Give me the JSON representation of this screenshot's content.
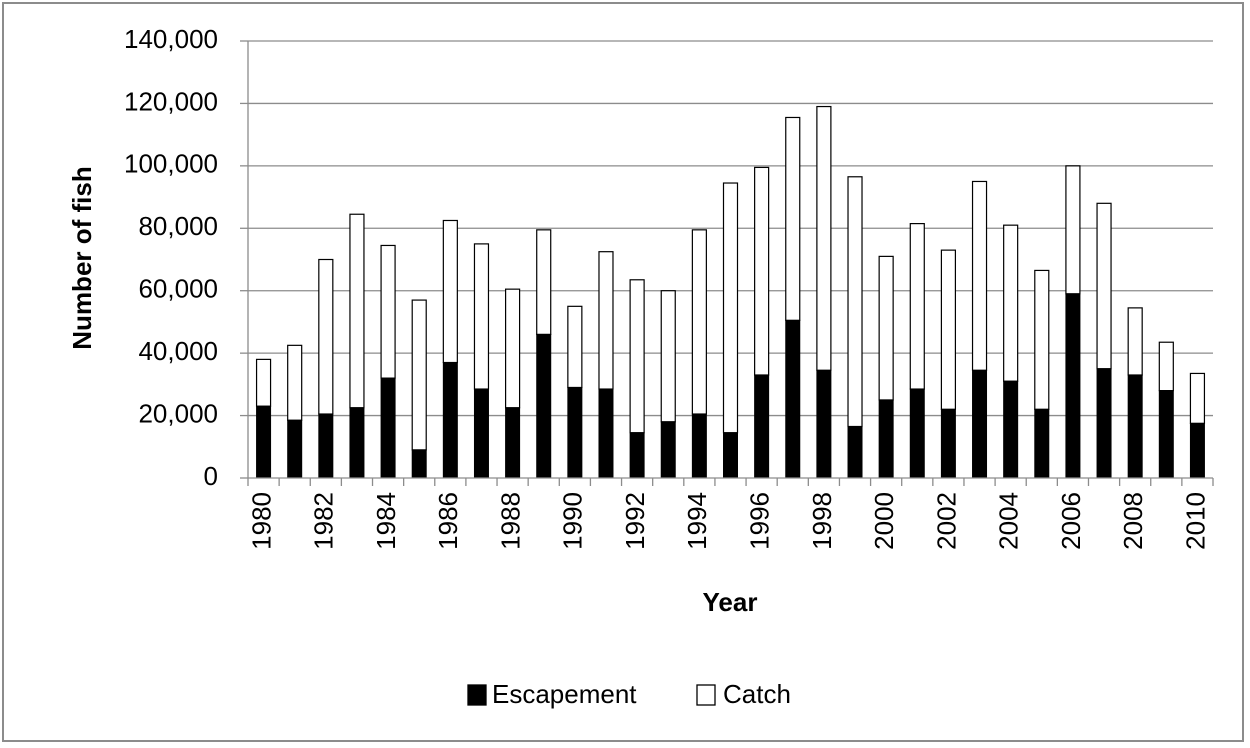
{
  "chart_data": {
    "type": "bar",
    "stacked": true,
    "title": "",
    "xlabel": "Year",
    "ylabel": "Number of fish",
    "ylim": [
      0,
      140000
    ],
    "y_ticks": [
      "0",
      "20,000",
      "40,000",
      "60,000",
      "80,000",
      "100,000",
      "120,000",
      "140,000"
    ],
    "y_tick_values": [
      0,
      20000,
      40000,
      60000,
      80000,
      100000,
      120000,
      140000
    ],
    "grid": true,
    "legend_position": "bottom",
    "categories": [
      "1980",
      "1981",
      "1982",
      "1983",
      "1984",
      "1985",
      "1986",
      "1987",
      "1988",
      "1989",
      "1990",
      "1991",
      "1992",
      "1993",
      "1994",
      "1995",
      "1996",
      "1997",
      "1998",
      "1999",
      "2000",
      "2001",
      "2002",
      "2003",
      "2004",
      "2005",
      "2006",
      "2007",
      "2008",
      "2009",
      "2010"
    ],
    "x_tick_labels": [
      "1980",
      "",
      "1982",
      "",
      "1984",
      "",
      "1986",
      "",
      "1988",
      "",
      "1990",
      "",
      "1992",
      "",
      "1994",
      "",
      "1996",
      "",
      "1998",
      "",
      "2000",
      "",
      "2002",
      "",
      "2004",
      "",
      "2006",
      "",
      "2008",
      "",
      "2010"
    ],
    "series": [
      {
        "name": "Escapement",
        "color": "#000000",
        "values": [
          23000,
          18500,
          20500,
          22500,
          32000,
          9000,
          37000,
          28500,
          22500,
          46000,
          29000,
          28500,
          14500,
          18000,
          20500,
          14500,
          33000,
          50500,
          34500,
          16500,
          25000,
          28500,
          22000,
          34500,
          31000,
          22000,
          59000,
          35000,
          33000,
          28000,
          17500
        ]
      },
      {
        "name": "Catch",
        "color": "#ffffff",
        "values": [
          15000,
          24000,
          49500,
          62000,
          42500,
          48000,
          45500,
          46500,
          38000,
          33500,
          26000,
          44000,
          49000,
          42000,
          59000,
          80000,
          66500,
          65000,
          84500,
          80000,
          46000,
          53000,
          51000,
          60500,
          50000,
          44500,
          41000,
          53000,
          21500,
          15500,
          16000
        ]
      }
    ]
  }
}
